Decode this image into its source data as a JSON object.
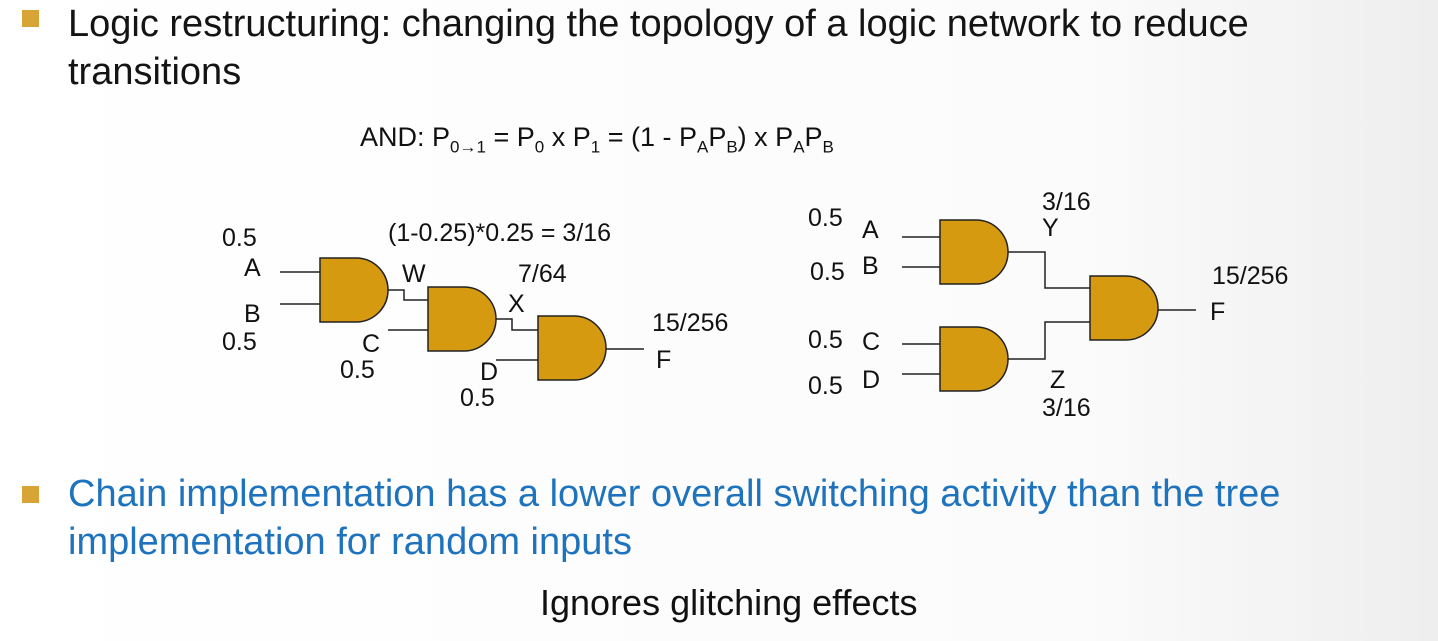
{
  "bullets": [
    {
      "text": "Logic restructuring: changing the topology of a logic network to reduce transitions"
    },
    {
      "text": "Chain implementation has a lower overall switching activity than the tree implementation for random inputs"
    }
  ],
  "formula": {
    "prefix": "AND:  P",
    "sub1": "0→1",
    "mid1": " = P",
    "sub2": "0",
    "mid2": " x  P",
    "sub3": "1",
    "mid3": " = (1 - P",
    "sub4": "A",
    "mid4": "P",
    "sub5": "B",
    "mid5": ") x P",
    "sub6": "A",
    "mid6": "P",
    "sub7": "B"
  },
  "chain": {
    "calc": "(1-0.25)*0.25 = 3/16",
    "prob_a": "0.5",
    "label_a": "A",
    "label_b": "B",
    "prob_b": "0.5",
    "label_w": "W",
    "label_c": "C",
    "prob_c": "0.5",
    "prob_x": "7/64",
    "label_x": "X",
    "label_d": "D",
    "prob_d": "0.5",
    "prob_f": "15/256",
    "label_f": "F"
  },
  "tree": {
    "prob_a": "0.5",
    "label_a": "A",
    "prob_b": "0.5",
    "label_b": "B",
    "prob_c": "0.5",
    "label_c": "C",
    "prob_d": "0.5",
    "label_d": "D",
    "prob_y": "3/16",
    "label_y": "Y",
    "label_z": "Z",
    "prob_z": "3/16",
    "prob_f": "15/256",
    "label_f": "F"
  },
  "footer": "Ignores glitching effects",
  "colors": {
    "bullet": "#d8a436",
    "gate": "#d59a10",
    "highlight_text": "#1e73be"
  }
}
